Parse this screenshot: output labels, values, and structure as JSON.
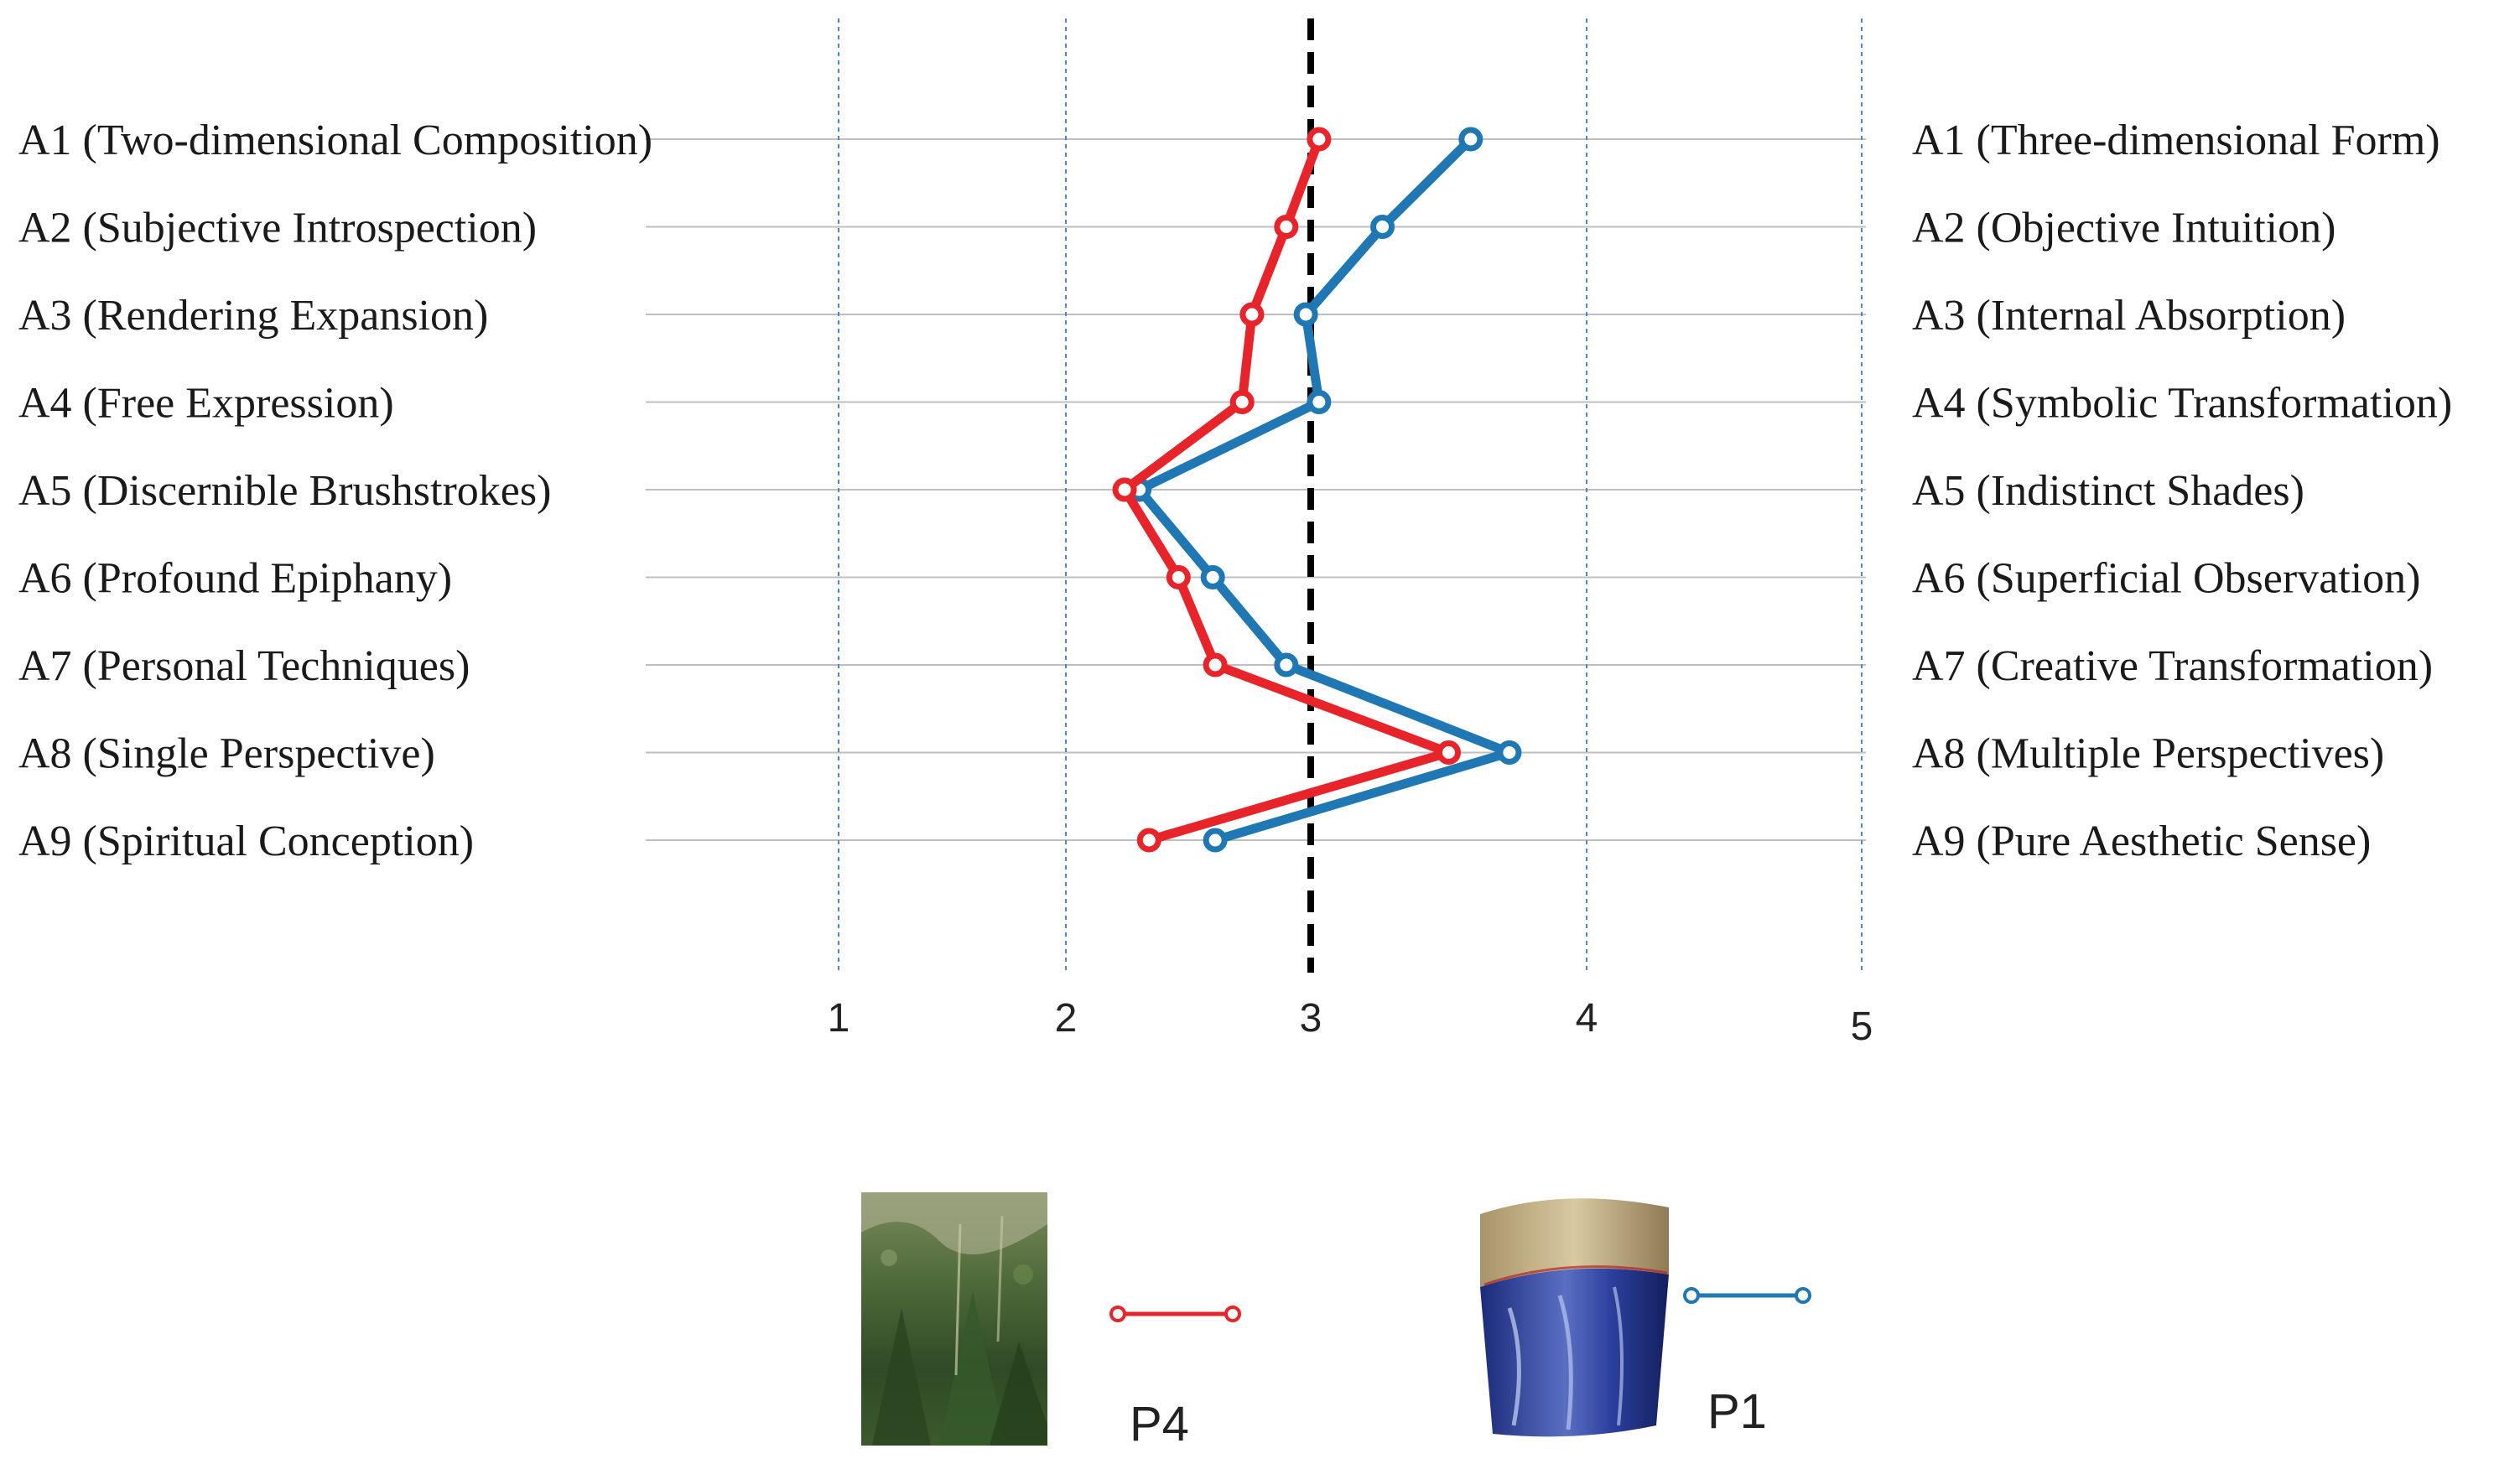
{
  "chart_data": {
    "type": "line",
    "orientation": "horizontal-profile",
    "left_labels": [
      "A1 (Two-dimensional Composition)",
      "A2 (Subjective Introspection)",
      "A3 (Rendering Expansion)",
      "A4 (Free Expression)",
      "A5 (Discernible Brushstrokes)",
      "A6 (Profound Epiphany)",
      "A7 (Personal Techniques)",
      "A8 (Single Perspective)",
      "A9 (Spiritual Conception)"
    ],
    "right_labels": [
      "A1 (Three-dimensional Form)",
      "A2 (Objective Intuition)",
      "A3 (Internal Absorption)",
      "A4 (Symbolic Transformation)",
      "A5 (Indistinct Shades)",
      "A6 (Superficial Observation)",
      "A7 (Creative Transformation)",
      "A8 (Multiple Perspectives)",
      "A9 (Pure Aesthetic Sense)"
    ],
    "x_ticks": [
      1,
      2,
      3,
      4,
      5
    ],
    "xlim": [
      1,
      5
    ],
    "reference_value": 3,
    "grid": true,
    "series": [
      {
        "name": "P4",
        "color": "#e8242b",
        "values": [
          3.03,
          2.9,
          2.76,
          2.72,
          2.24,
          2.46,
          2.61,
          3.5,
          2.34
        ]
      },
      {
        "name": "P1",
        "color": "#1f77b4",
        "values": [
          3.58,
          3.26,
          2.98,
          3.03,
          2.3,
          2.6,
          2.9,
          3.72,
          2.61
        ]
      }
    ],
    "legend": [
      {
        "label": "P4",
        "series": 0,
        "thumbnail": "forest-painting-thumbnail"
      },
      {
        "label": "P1",
        "series": 1,
        "thumbnail": "blue-vase-thumbnail"
      }
    ]
  }
}
